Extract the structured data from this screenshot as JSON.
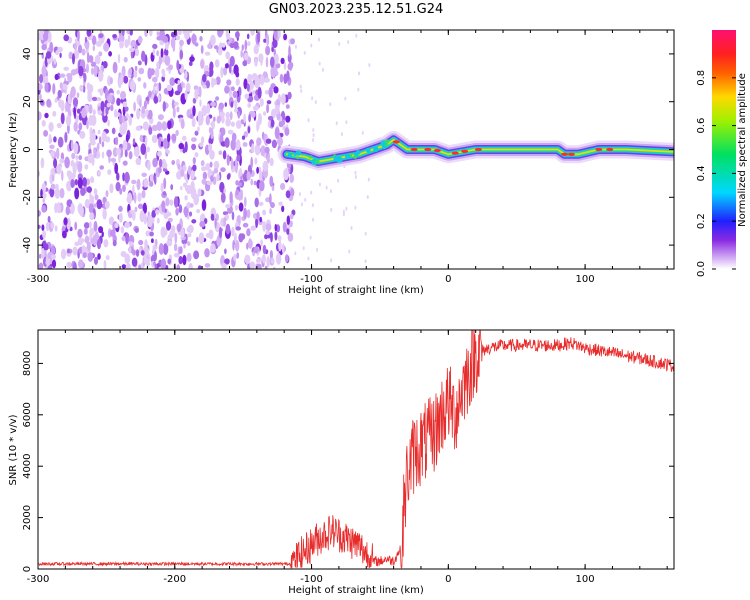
{
  "figure": {
    "title": "GN03.2023.235.12.51.G24"
  },
  "chart_data": [
    {
      "type": "heatmap",
      "xlabel": "Height of straight line (km)",
      "ylabel": "Frequency (Hz)",
      "xlim": [
        -300,
        165
      ],
      "ylim": [
        -50,
        50
      ],
      "x_ticks": [
        "-300",
        "-200",
        "-100",
        "0",
        "100"
      ],
      "y_ticks": [
        "-40",
        "-20",
        "0",
        "20",
        "40"
      ],
      "colorbar": {
        "label": "Normalized spectral amplitude",
        "range": [
          0,
          1
        ],
        "ticks": [
          "0.0",
          "0.2",
          "0.4",
          "0.6",
          "0.8"
        ]
      },
      "signal_trace": {
        "x": [
          -118,
          -105,
          -95,
          -85,
          -75,
          -65,
          -55,
          -45,
          -40,
          -35,
          -30,
          -20,
          -10,
          0,
          20,
          40,
          60,
          80,
          85,
          95,
          110,
          130,
          165
        ],
        "y": [
          -2,
          -3,
          -5,
          -4,
          -3,
          -2,
          0,
          2,
          4,
          2,
          0,
          0,
          0,
          -2,
          0,
          0,
          0,
          0,
          -2,
          -2,
          0,
          0,
          -1
        ]
      }
    },
    {
      "type": "line",
      "xlabel": "Height of straight line (km)",
      "ylabel": "SNR (10 * v/v)",
      "xlim": [
        -300,
        165
      ],
      "ylim": [
        0,
        9300
      ],
      "x_ticks": [
        "-300",
        "-200",
        "-100",
        "0",
        "100"
      ],
      "y_ticks": [
        "0",
        "2000",
        "4000",
        "6000",
        "8000"
      ],
      "series": [
        {
          "color": "#e82b2b",
          "x": [
            -300,
            -200,
            -115,
            -105,
            -95,
            -85,
            -75,
            -65,
            -55,
            -50,
            -45,
            -40,
            -35,
            -30,
            -25,
            -20,
            -15,
            -10,
            -5,
            0,
            5,
            10,
            20,
            30,
            40,
            60,
            80,
            90,
            100,
            120,
            140,
            165
          ],
          "y": [
            200,
            200,
            200,
            700,
            1200,
            1500,
            1200,
            900,
            300,
            300,
            400,
            300,
            800,
            3700,
            4500,
            4800,
            5000,
            5300,
            6000,
            6500,
            6000,
            7000,
            8400,
            8600,
            8700,
            8700,
            8700,
            8800,
            8600,
            8400,
            8200,
            7900
          ]
        }
      ]
    }
  ]
}
